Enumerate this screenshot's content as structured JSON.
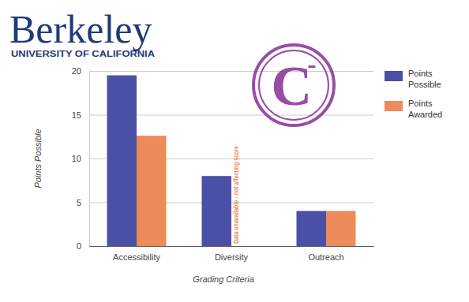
{
  "logo": {
    "name": "Berkeley",
    "subtitle": "UNIVERSITY OF CALIFORNIA"
  },
  "stamp": "C-",
  "chart_data": {
    "type": "bar",
    "categories": [
      "Accessibility",
      "Diversity",
      "Outreach"
    ],
    "series": [
      {
        "name": "Points Possible",
        "color": "#4b4fa5",
        "values": [
          19.5,
          8,
          4
        ]
      },
      {
        "name": "Points Awarded",
        "color": "#ee8b5b",
        "values": [
          12.6,
          null,
          4
        ]
      }
    ],
    "x_label": "Grading Criteria",
    "y_label": "Points Possible",
    "ylim": [
      0,
      20
    ],
    "yticks": [
      0,
      5,
      10,
      15,
      20
    ],
    "grid": true,
    "legend": "right",
    "annotations": [
      {
        "text": "Data unavailable - not affecting score",
        "x": "Diversity",
        "series": "Points Awarded"
      }
    ]
  }
}
